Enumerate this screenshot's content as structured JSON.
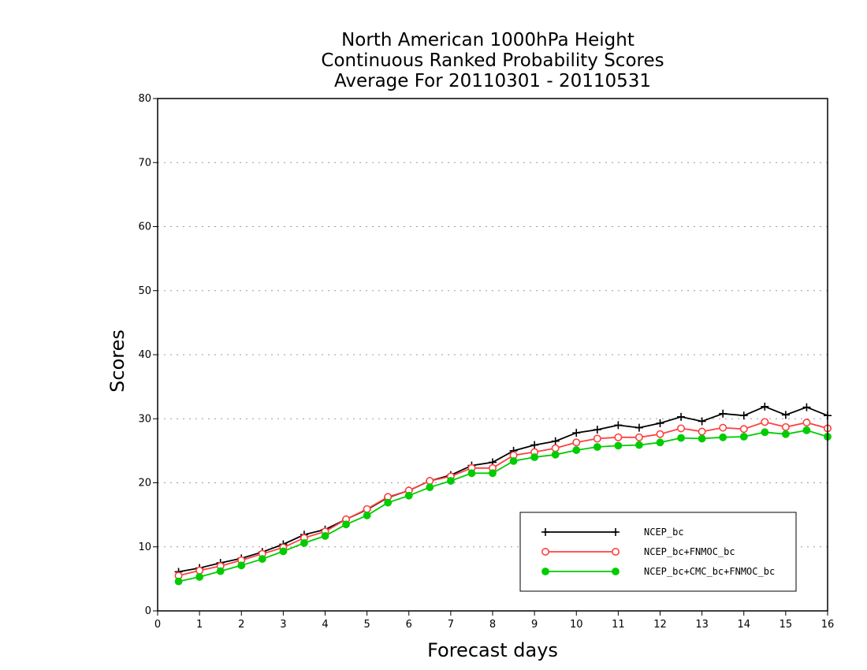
{
  "chart_data": {
    "type": "line",
    "title_lines": [
      "North American 1000hPa Height",
      "Continuous Ranked Probability Scores",
      "Average For 20110301 - 20110531"
    ],
    "xlabel": "Forecast days",
    "ylabel": "Scores",
    "xlim": [
      0,
      16
    ],
    "ylim": [
      0,
      80
    ],
    "x_ticks": [
      "0",
      "1",
      "2",
      "3",
      "4",
      "5",
      "6",
      "7",
      "8",
      "9",
      "10",
      "11",
      "12",
      "13",
      "14",
      "15",
      "16"
    ],
    "y_ticks": [
      "0",
      "10",
      "20",
      "30",
      "40",
      "50",
      "60",
      "70",
      "80"
    ],
    "grid": "horizontal dotted",
    "legend_position": "bottom-right",
    "x": [
      0.5,
      1,
      1.5,
      2,
      2.5,
      3,
      3.5,
      4,
      4.5,
      5,
      5.5,
      6,
      6.5,
      7,
      7.5,
      8,
      8.5,
      9,
      9.5,
      10,
      10.5,
      11,
      11.5,
      12,
      12.5,
      13,
      13.5,
      14,
      14.5,
      15,
      15.5,
      16
    ],
    "series": [
      {
        "name": "NCEP_bc",
        "color": "#000000",
        "marker": "plus",
        "values": [
          6.1,
          6.7,
          7.5,
          8.2,
          9.2,
          10.4,
          11.9,
          12.7,
          14.3,
          15.8,
          17.7,
          18.8,
          20.3,
          21.2,
          22.7,
          23.2,
          25.0,
          25.9,
          26.5,
          27.8,
          28.3,
          29.0,
          28.6,
          29.3,
          30.3,
          29.6,
          30.8,
          30.5,
          31.9,
          30.6,
          31.8,
          30.5
        ]
      },
      {
        "name": "NCEP_bc+FNMOC_bc",
        "color": "#ff4040",
        "marker": "open-circle",
        "values": [
          5.5,
          6.3,
          7.0,
          7.9,
          8.9,
          9.9,
          11.4,
          12.4,
          14.3,
          15.9,
          17.8,
          18.8,
          20.3,
          21.0,
          22.3,
          22.3,
          24.3,
          24.8,
          25.4,
          26.3,
          26.9,
          27.1,
          27.1,
          27.6,
          28.5,
          28.0,
          28.6,
          28.4,
          29.5,
          28.7,
          29.4,
          28.5
        ]
      },
      {
        "name": "NCEP_bc+CMC_bc+FNMOC_bc",
        "color": "#00cc00",
        "marker": "filled-circle",
        "values": [
          4.6,
          5.3,
          6.2,
          7.1,
          8.1,
          9.3,
          10.6,
          11.7,
          13.5,
          14.9,
          16.9,
          18.0,
          19.3,
          20.3,
          21.5,
          21.5,
          23.4,
          24.0,
          24.4,
          25.1,
          25.6,
          25.8,
          25.9,
          26.3,
          27.0,
          26.9,
          27.1,
          27.2,
          27.9,
          27.6,
          28.2,
          27.2
        ]
      }
    ]
  }
}
